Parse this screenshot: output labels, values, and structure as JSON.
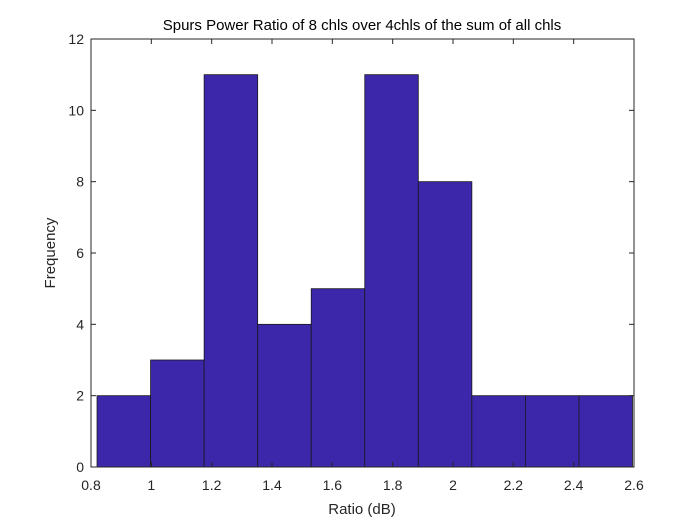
{
  "chart_data": {
    "type": "bar",
    "subtype": "histogram",
    "title": "Spurs Power Ratio of 8 chls over 4chls of the sum of all chls",
    "xlabel": "Ratio (dB)",
    "ylabel": "Frequency",
    "xlim": [
      0.8,
      2.6
    ],
    "ylim": [
      0,
      12
    ],
    "xticks": [
      "0.8",
      "1",
      "1.2",
      "1.4",
      "1.6",
      "1.8",
      "2",
      "2.2",
      "2.4",
      "2.6"
    ],
    "yticks": [
      "0",
      "2",
      "4",
      "6",
      "8",
      "10",
      "12"
    ],
    "bin_edges": [
      0.82,
      0.9975,
      1.175,
      1.3525,
      1.53,
      1.7075,
      1.885,
      2.0625,
      2.24,
      2.4175,
      2.595
    ],
    "values": [
      2,
      3,
      11,
      4,
      5,
      11,
      8,
      2,
      2,
      2
    ],
    "bar_color": "#3c26aa",
    "grid": false
  }
}
